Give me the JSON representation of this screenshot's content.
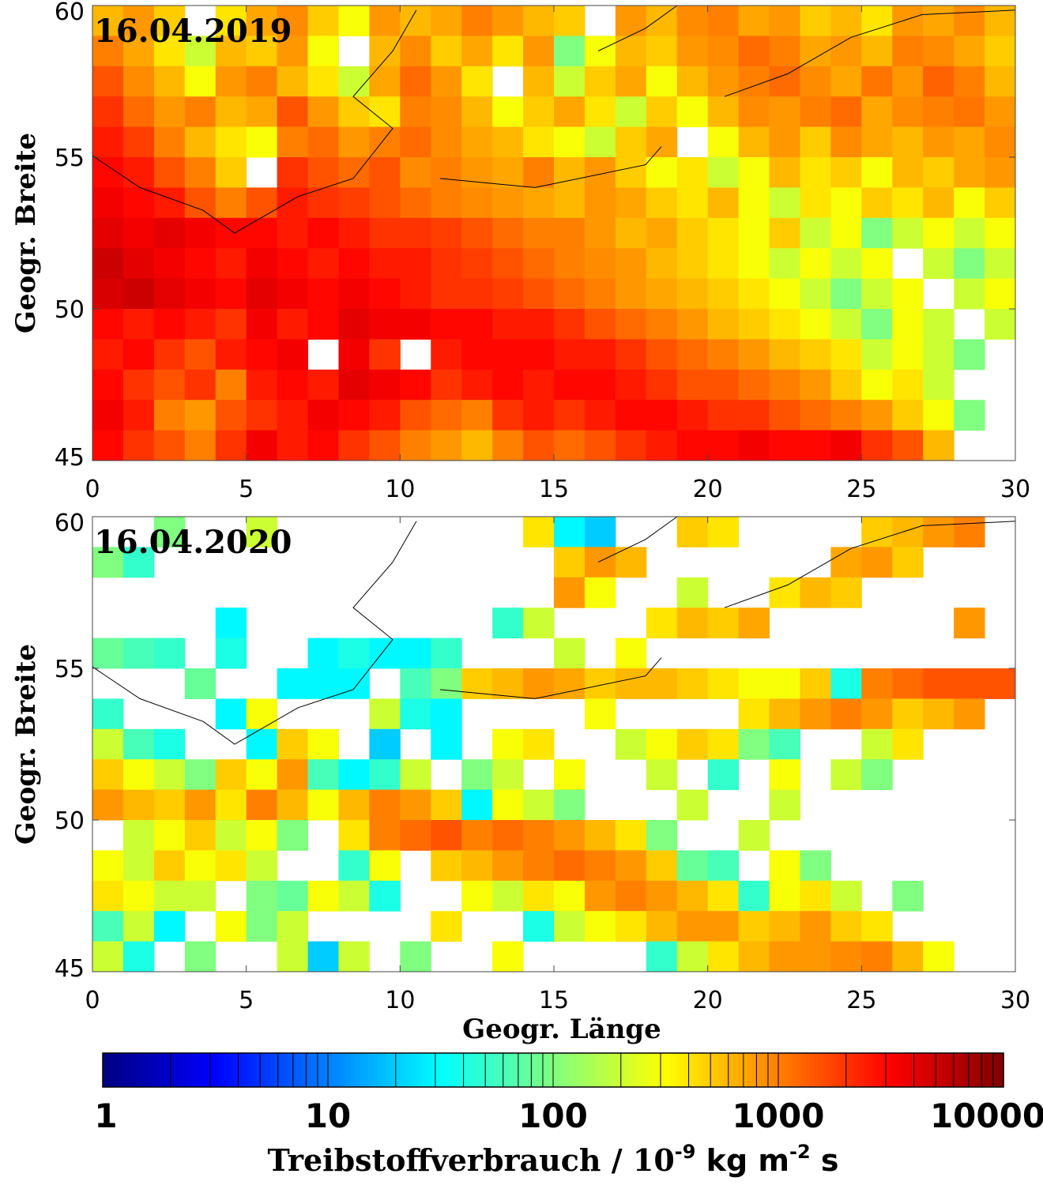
{
  "chart_data": [
    {
      "type": "heatmap",
      "title": "16.04.2019",
      "ylabel": "Geogr. Breite",
      "xlim": [
        0,
        30
      ],
      "ylim": [
        45,
        60
      ],
      "xticks": [
        0,
        5,
        10,
        15,
        20,
        25,
        30
      ],
      "yticks": [
        45,
        50,
        55,
        60
      ],
      "colormap": "jet",
      "log_scale": true,
      "z": [
        [
          600,
          800,
          500,
          null,
          400,
          700,
          900,
          500,
          300,
          800,
          600,
          700,
          1000,
          800,
          600,
          500,
          null,
          800,
          600,
          900,
          1000,
          700,
          800,
          500,
          600,
          400,
          800,
          700,
          900,
          600
        ],
        [
          1000,
          700,
          400,
          200,
          600,
          500,
          800,
          300,
          null,
          600,
          900,
          500,
          700,
          400,
          800,
          100,
          300,
          600,
          500,
          800,
          900,
          1200,
          1000,
          700,
          800,
          600,
          1000,
          900,
          700,
          500
        ],
        [
          1500,
          900,
          600,
          300,
          800,
          1000,
          600,
          400,
          200,
          700,
          1200,
          800,
          400,
          null,
          600,
          200,
          500,
          700,
          300,
          600,
          800,
          1000,
          1200,
          900,
          700,
          1100,
          800,
          1300,
          1000,
          600
        ],
        [
          2000,
          1200,
          800,
          1000,
          600,
          700,
          1500,
          800,
          500,
          400,
          1000,
          900,
          600,
          300,
          500,
          700,
          400,
          200,
          500,
          300,
          600,
          900,
          800,
          1000,
          1200,
          700,
          900,
          1000,
          1100,
          800
        ],
        [
          2500,
          1800,
          1000,
          600,
          400,
          300,
          1000,
          1200,
          800,
          1000,
          1200,
          900,
          700,
          600,
          400,
          300,
          200,
          500,
          700,
          null,
          300,
          600,
          800,
          500,
          900,
          700,
          600,
          800,
          700,
          900
        ],
        [
          3000,
          2500,
          1500,
          1000,
          500,
          null,
          2000,
          1500,
          1200,
          1500,
          900,
          1000,
          800,
          700,
          1000,
          600,
          800,
          500,
          300,
          400,
          200,
          300,
          600,
          400,
          500,
          300,
          600,
          500,
          700,
          800
        ],
        [
          3500,
          3000,
          2500,
          1500,
          1000,
          1500,
          2500,
          2000,
          1800,
          1500,
          1200,
          1000,
          900,
          800,
          700,
          600,
          800,
          700,
          500,
          400,
          600,
          300,
          200,
          400,
          300,
          500,
          400,
          600,
          300,
          500
        ],
        [
          4000,
          3500,
          4000,
          3500,
          3000,
          3000,
          2500,
          3000,
          2500,
          2000,
          2000,
          1800,
          1500,
          1200,
          1000,
          1000,
          800,
          600,
          700,
          500,
          400,
          300,
          500,
          200,
          300,
          100,
          200,
          300,
          200,
          300
        ],
        [
          5000,
          4000,
          3500,
          3000,
          2500,
          3500,
          3000,
          2500,
          3000,
          2500,
          2500,
          2000,
          1800,
          1500,
          1200,
          1000,
          900,
          800,
          600,
          500,
          400,
          300,
          200,
          300,
          200,
          300,
          null,
          200,
          100,
          200
        ],
        [
          4500,
          5000,
          4000,
          3500,
          3000,
          4000,
          3500,
          3000,
          3500,
          3000,
          2500,
          2000,
          2000,
          1800,
          1500,
          1200,
          1000,
          800,
          700,
          600,
          500,
          400,
          300,
          200,
          100,
          200,
          300,
          null,
          200,
          300
        ],
        [
          3000,
          2500,
          3000,
          2500,
          2000,
          3500,
          2500,
          3000,
          4000,
          3500,
          3500,
          3000,
          3000,
          2500,
          2500,
          2000,
          1500,
          1200,
          1000,
          800,
          600,
          500,
          400,
          300,
          200,
          100,
          300,
          200,
          null,
          200
        ],
        [
          2500,
          3000,
          2000,
          1500,
          2500,
          3000,
          3500,
          null,
          3500,
          2000,
          null,
          2500,
          3000,
          3000,
          3000,
          2500,
          2500,
          2000,
          1500,
          1200,
          1000,
          800,
          600,
          500,
          400,
          200,
          300,
          200,
          100,
          null
        ],
        [
          3000,
          2000,
          1500,
          2000,
          1000,
          2500,
          3000,
          2500,
          4000,
          3500,
          3000,
          2000,
          2500,
          3000,
          2500,
          3000,
          3000,
          2500,
          2000,
          1500,
          1500,
          1200,
          1000,
          800,
          500,
          300,
          400,
          200,
          null,
          null
        ],
        [
          3500,
          2500,
          1000,
          800,
          1500,
          2000,
          2500,
          3500,
          3000,
          2500,
          1500,
          1200,
          1000,
          2000,
          2500,
          2000,
          2500,
          3000,
          3000,
          2500,
          2000,
          2000,
          1500,
          1200,
          1000,
          800,
          500,
          300,
          100,
          null
        ],
        [
          3000,
          2000,
          1500,
          1000,
          2000,
          3500,
          2500,
          3000,
          2000,
          1500,
          1000,
          800,
          600,
          1000,
          1500,
          1200,
          1500,
          2000,
          2500,
          3000,
          3000,
          3500,
          3000,
          3000,
          3500,
          2000,
          1500,
          600,
          null,
          null
        ]
      ]
    },
    {
      "type": "heatmap",
      "title": "16.04.2020",
      "ylabel": "Geogr. Breite",
      "xlabel": "Geogr. Länge",
      "xlim": [
        0,
        30
      ],
      "ylim": [
        45,
        60
      ],
      "xticks": [
        0,
        5,
        10,
        15,
        20,
        25,
        30
      ],
      "yticks": [
        45,
        50,
        55,
        60
      ],
      "colormap": "jet",
      "log_scale": true,
      "z": [
        [
          null,
          null,
          100,
          null,
          null,
          200,
          null,
          null,
          null,
          null,
          null,
          null,
          null,
          null,
          400,
          30,
          20,
          null,
          null,
          500,
          400,
          null,
          null,
          null,
          null,
          500,
          600,
          800,
          1000,
          null
        ],
        [
          100,
          50,
          null,
          null,
          null,
          null,
          null,
          null,
          null,
          null,
          null,
          null,
          null,
          null,
          null,
          500,
          800,
          600,
          null,
          null,
          null,
          null,
          null,
          null,
          700,
          800,
          500,
          null,
          null,
          null
        ],
        [
          null,
          null,
          null,
          null,
          null,
          null,
          null,
          null,
          null,
          null,
          null,
          null,
          null,
          null,
          null,
          800,
          300,
          null,
          null,
          200,
          null,
          null,
          400,
          600,
          500,
          null,
          null,
          null,
          null,
          null
        ],
        [
          null,
          null,
          null,
          null,
          30,
          null,
          null,
          null,
          null,
          null,
          null,
          null,
          null,
          50,
          200,
          null,
          null,
          null,
          400,
          600,
          500,
          700,
          null,
          null,
          null,
          null,
          null,
          null,
          800,
          null
        ],
        [
          80,
          60,
          50,
          null,
          40,
          null,
          null,
          30,
          40,
          30,
          30,
          50,
          null,
          null,
          null,
          200,
          null,
          300,
          null,
          null,
          null,
          null,
          null,
          null,
          null,
          null,
          null,
          null,
          null,
          null
        ],
        [
          null,
          null,
          null,
          80,
          null,
          null,
          30,
          30,
          30,
          null,
          60,
          100,
          500,
          600,
          800,
          700,
          500,
          600,
          600,
          500,
          400,
          300,
          300,
          500,
          40,
          1000,
          1200,
          1500,
          1500,
          1500
        ],
        [
          50,
          null,
          null,
          null,
          30,
          300,
          null,
          null,
          null,
          200,
          40,
          30,
          null,
          null,
          null,
          null,
          300,
          null,
          null,
          null,
          null,
          400,
          600,
          800,
          1000,
          800,
          500,
          600,
          800,
          null
        ],
        [
          200,
          60,
          40,
          null,
          null,
          30,
          500,
          300,
          null,
          20,
          null,
          30,
          null,
          300,
          400,
          null,
          null,
          200,
          300,
          500,
          400,
          100,
          60,
          null,
          null,
          200,
          400,
          null,
          null,
          null
        ],
        [
          500,
          300,
          200,
          100,
          500,
          300,
          800,
          60,
          30,
          50,
          200,
          null,
          100,
          200,
          null,
          300,
          null,
          null,
          200,
          null,
          50,
          null,
          300,
          null,
          200,
          100,
          null,
          null,
          null,
          null
        ],
        [
          800,
          600,
          500,
          800,
          400,
          1000,
          600,
          300,
          600,
          1000,
          800,
          500,
          30,
          300,
          200,
          100,
          null,
          null,
          null,
          200,
          null,
          null,
          200,
          null,
          null,
          null,
          null,
          null,
          null,
          null
        ],
        [
          null,
          200,
          300,
          500,
          200,
          300,
          100,
          null,
          400,
          1000,
          1200,
          1500,
          1000,
          1200,
          1000,
          800,
          600,
          400,
          100,
          null,
          null,
          200,
          null,
          null,
          null,
          null,
          null,
          null,
          null,
          null
        ],
        [
          300,
          200,
          500,
          300,
          400,
          200,
          null,
          null,
          50,
          300,
          null,
          500,
          600,
          800,
          1000,
          1200,
          1000,
          800,
          500,
          80,
          60,
          null,
          300,
          100,
          null,
          null,
          null,
          null,
          null,
          null
        ],
        [
          400,
          300,
          200,
          200,
          null,
          100,
          80,
          300,
          200,
          40,
          null,
          null,
          300,
          200,
          400,
          300,
          800,
          1000,
          800,
          600,
          400,
          50,
          300,
          400,
          200,
          null,
          100,
          null,
          null,
          null
        ],
        [
          60,
          200,
          30,
          null,
          300,
          100,
          200,
          null,
          null,
          null,
          null,
          400,
          null,
          null,
          40,
          200,
          300,
          400,
          600,
          800,
          800,
          500,
          600,
          800,
          500,
          400,
          null,
          null,
          null,
          null
        ],
        [
          200,
          40,
          null,
          100,
          null,
          null,
          200,
          20,
          200,
          null,
          100,
          null,
          null,
          300,
          null,
          null,
          null,
          null,
          50,
          200,
          400,
          600,
          800,
          800,
          900,
          1000,
          600,
          300,
          null,
          null
        ]
      ]
    }
  ],
  "colorbar": {
    "lim": [
      1,
      10000
    ],
    "ticks": [
      1,
      10,
      100,
      1000,
      10000
    ],
    "log_scale": true,
    "colormap": "jet",
    "label_parts": [
      "Treibstoffverbrauch / 10",
      "-9",
      " kg m",
      "-2",
      " s"
    ]
  }
}
